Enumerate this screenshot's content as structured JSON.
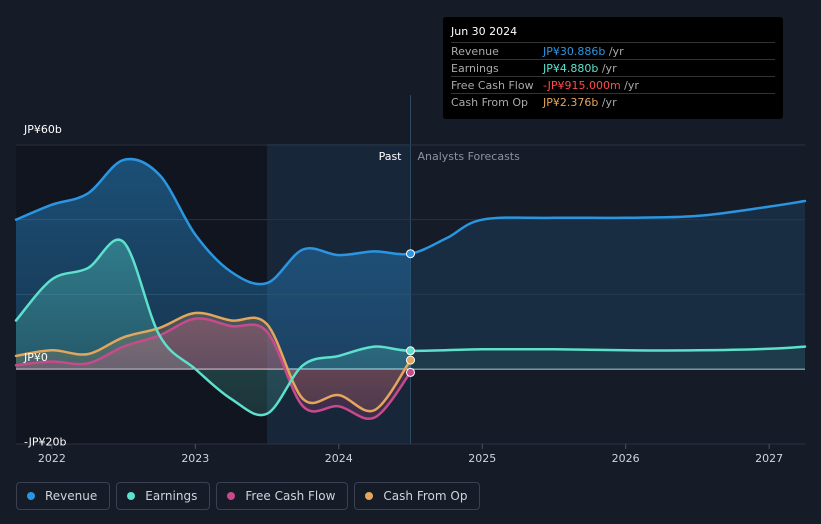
{
  "colors": {
    "revenue": "#2a96e1",
    "earnings": "#5de0cc",
    "free_cash_flow": "#c74a8c",
    "cash_from_op": "#e3a65c",
    "negative_value": "#ff4b4b",
    "background": "#151b27"
  },
  "tooltip": {
    "date": "Jun 30 2024",
    "rows": [
      {
        "label": "Revenue",
        "value": "JP¥30.886b",
        "unit": " /yr",
        "color": "#2a96e1"
      },
      {
        "label": "Earnings",
        "value": "JP¥4.880b",
        "unit": " /yr",
        "color": "#5de0cc"
      },
      {
        "label": "Free Cash Flow",
        "value": "-JP¥915.000m",
        "unit": " /yr",
        "color": "#ff4b4b"
      },
      {
        "label": "Cash From Op",
        "value": "JP¥2.376b",
        "unit": " /yr",
        "color": "#e3a65c"
      }
    ]
  },
  "legend": {
    "items": [
      {
        "label": "Revenue",
        "color": "#2a96e1"
      },
      {
        "label": "Earnings",
        "color": "#5de0cc"
      },
      {
        "label": "Free Cash Flow",
        "color": "#c74a8c"
      },
      {
        "label": "Cash From Op",
        "color": "#e3a65c"
      }
    ]
  },
  "chart_data": {
    "type": "line",
    "regions": {
      "past_label": "Past",
      "forecast_label": "Analysts Forecasts",
      "past_start": 2023.5,
      "divider": 2024.5
    },
    "y_tick_labels": [
      {
        "value": 60,
        "label": "JP¥60b"
      },
      {
        "value": 0,
        "label": "JP¥0"
      },
      {
        "value": -20,
        "label": "-JP¥20b"
      }
    ],
    "ylim": [
      -20,
      60
    ],
    "xlim": [
      2021.75,
      2027.25
    ],
    "x_ticks": [
      2022,
      2023,
      2024,
      2025,
      2026,
      2027
    ],
    "x_tick_labels": [
      "2022",
      "2023",
      "2024",
      "2025",
      "2026",
      "2027"
    ],
    "series": [
      {
        "name": "Revenue",
        "color": "#2a96e1",
        "points": [
          [
            2021.75,
            40
          ],
          [
            2022,
            44
          ],
          [
            2022.25,
            47
          ],
          [
            2022.5,
            56
          ],
          [
            2022.75,
            52
          ],
          [
            2023,
            36
          ],
          [
            2023.25,
            26
          ],
          [
            2023.5,
            23
          ],
          [
            2023.75,
            32
          ],
          [
            2024,
            30.5
          ],
          [
            2024.25,
            31.5
          ],
          [
            2024.5,
            30.886
          ],
          [
            2024.75,
            35
          ],
          [
            2025,
            40
          ],
          [
            2025.5,
            40.5
          ],
          [
            2026,
            40.5
          ],
          [
            2026.5,
            41
          ],
          [
            2027,
            43.5
          ],
          [
            2027.25,
            45
          ]
        ]
      },
      {
        "name": "Earnings",
        "color": "#5de0cc",
        "points": [
          [
            2021.75,
            13
          ],
          [
            2022,
            24
          ],
          [
            2022.25,
            27
          ],
          [
            2022.5,
            34
          ],
          [
            2022.75,
            9
          ],
          [
            2023,
            0
          ],
          [
            2023.25,
            -8
          ],
          [
            2023.5,
            -12
          ],
          [
            2023.75,
            1
          ],
          [
            2024,
            3.5
          ],
          [
            2024.25,
            6
          ],
          [
            2024.5,
            4.88
          ],
          [
            2025,
            5.3
          ],
          [
            2025.5,
            5.3
          ],
          [
            2026,
            5
          ],
          [
            2026.5,
            5
          ],
          [
            2027,
            5.4
          ],
          [
            2027.25,
            6
          ]
        ]
      },
      {
        "name": "Free Cash Flow",
        "color": "#c74a8c",
        "points": [
          [
            2021.75,
            1
          ],
          [
            2022,
            2
          ],
          [
            2022.25,
            1.5
          ],
          [
            2022.5,
            6
          ],
          [
            2022.75,
            9
          ],
          [
            2023,
            13.5
          ],
          [
            2023.25,
            11.5
          ],
          [
            2023.5,
            10
          ],
          [
            2023.75,
            -10
          ],
          [
            2024,
            -10
          ],
          [
            2024.25,
            -13
          ],
          [
            2024.5,
            -0.915
          ]
        ]
      },
      {
        "name": "Cash From Op",
        "color": "#e3a65c",
        "points": [
          [
            2021.75,
            3.5
          ],
          [
            2022,
            5
          ],
          [
            2022.25,
            4
          ],
          [
            2022.5,
            8.5
          ],
          [
            2022.75,
            11
          ],
          [
            2023,
            15
          ],
          [
            2023.25,
            13
          ],
          [
            2023.5,
            12
          ],
          [
            2023.75,
            -8
          ],
          [
            2024,
            -7
          ],
          [
            2024.25,
            -11
          ],
          [
            2024.5,
            2.376
          ]
        ]
      }
    ],
    "highlight_x": 2024.5
  }
}
